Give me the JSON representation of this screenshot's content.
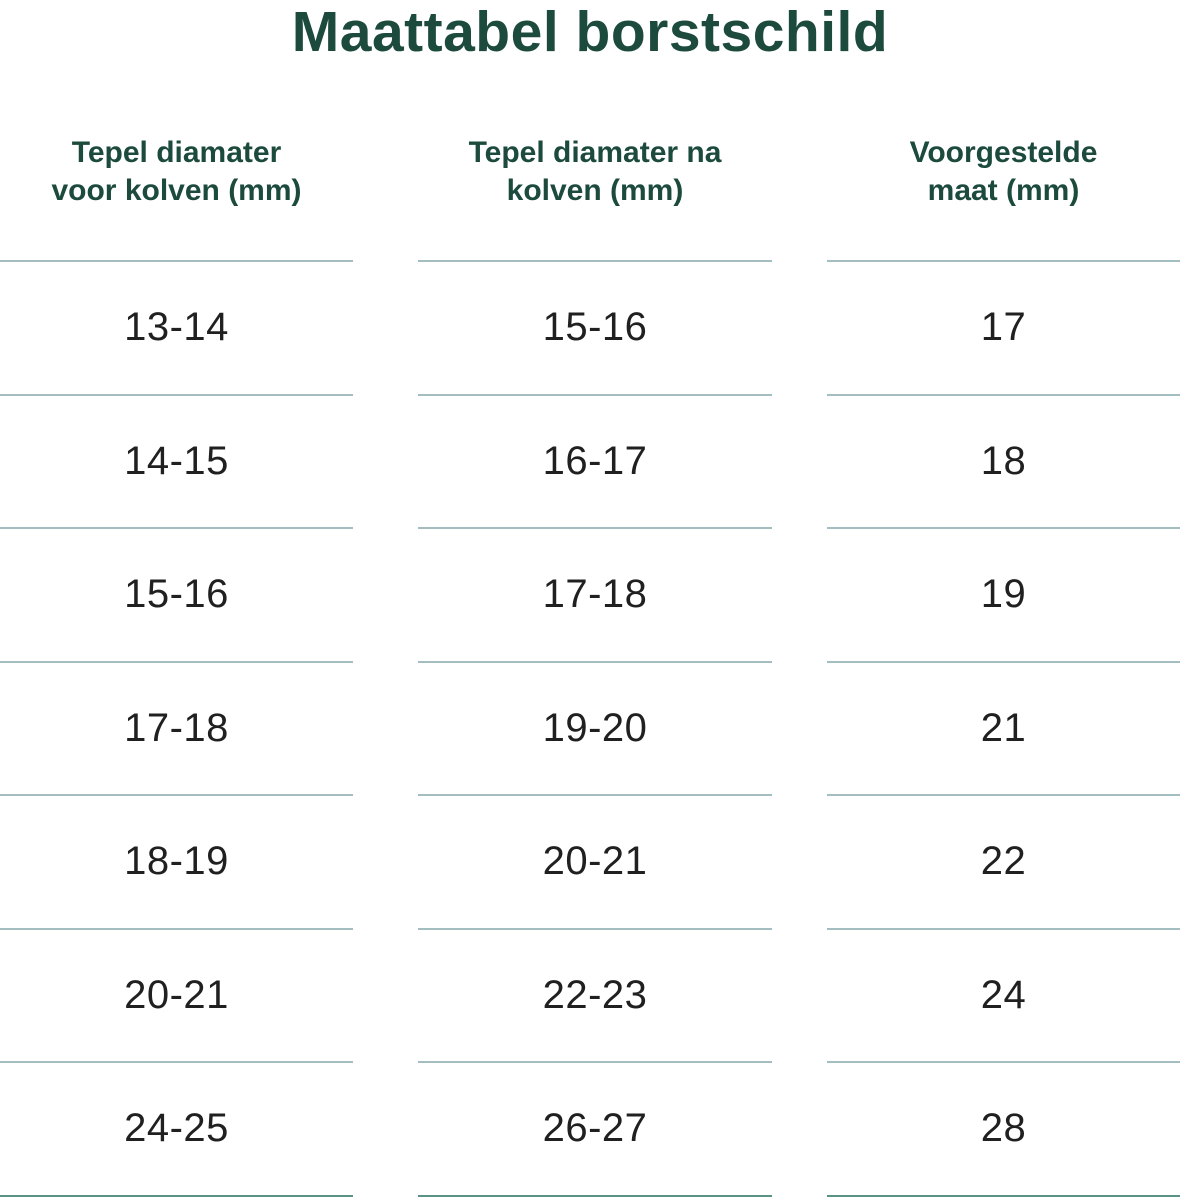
{
  "page": {
    "title": "Maattabel borstschild"
  },
  "chart_data": {
    "type": "table",
    "title": "Maattabel borstschild",
    "columns": [
      "Tepel diamater voor kolven (mm)",
      "Tepel diamater na kolven (mm)",
      "Voorgestelde maat (mm)"
    ],
    "rows": [
      [
        "13-14",
        "15-16",
        "17"
      ],
      [
        "14-15",
        "16-17",
        "18"
      ],
      [
        "15-16",
        "17-18",
        "19"
      ],
      [
        "17-18",
        "19-20",
        "21"
      ],
      [
        "18-19",
        "20-21",
        "22"
      ],
      [
        "20-21",
        "22-23",
        "24"
      ],
      [
        "24-25",
        "26-27",
        "28"
      ]
    ]
  },
  "header_lines": [
    [
      "Tepel diamater",
      "voor kolven (mm)"
    ],
    [
      "Tepel diamater na",
      "kolven (mm)"
    ],
    [
      "Voorgestelde",
      "maat (mm)"
    ]
  ],
  "colors": {
    "heading-green": "#1c4a3c",
    "row-text": "#202020",
    "divider": "#a3bdc0",
    "divider-bottom": "#5a9284"
  }
}
